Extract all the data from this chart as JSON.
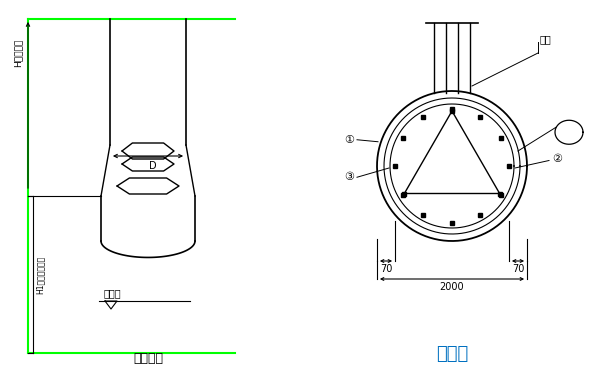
{
  "bg_color": "#ffffff",
  "line_color": "#000000",
  "green_color": "#00ff00",
  "orange_color": "#0070c0",
  "title1": "桩身大样",
  "title2": "桩截面",
  "label_H": "H（桩长）",
  "label_H1": "H1（入岩深度）",
  "label_D": "D",
  "label_chiyen": "持力层",
  "label_70_left": "70",
  "label_70_right": "70",
  "label_2000": "2000",
  "label_hanjie": "焊接",
  "label_1": "①",
  "label_2": "②",
  "label_3": "③"
}
